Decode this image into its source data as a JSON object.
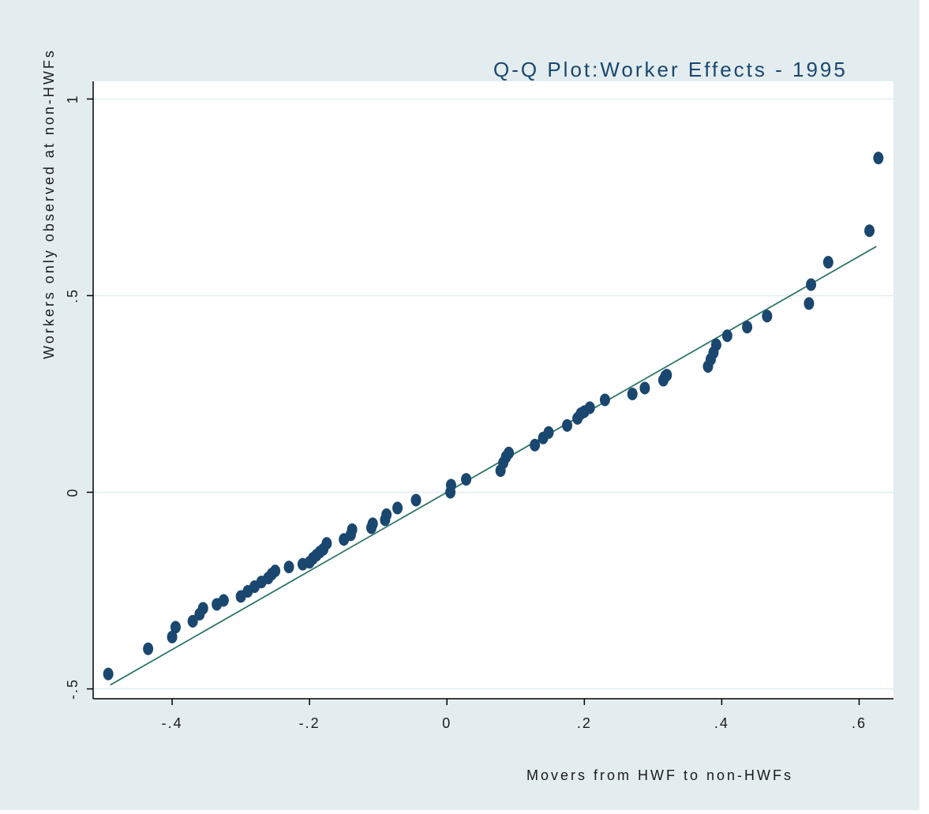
{
  "colors": {
    "outer_background": "#E3EDEF",
    "plot_background": "#FFFFFF",
    "gridline": "#E3EDEF",
    "point": "#1A476F",
    "reference_line": "#2E7667",
    "text": "#1A1A1A",
    "title": "#1A476F"
  },
  "chart_data": {
    "type": "scatter",
    "title": "Q-Q Plot:Worker Effects - 1995",
    "xlabel": "Movers from HWF to non-HWFs",
    "ylabel": "Workers only observed at non-HWFs",
    "x_ticks": [
      -0.4,
      -0.2,
      0,
      0.2,
      0.4,
      0.6
    ],
    "x_tick_labels": [
      "-.4",
      "-.2",
      "0",
      ".2",
      ".4",
      ".6"
    ],
    "y_ticks": [
      -0.5,
      0,
      0.5,
      1
    ],
    "y_tick_labels": [
      "-.5",
      "0",
      ".5",
      "1"
    ],
    "xlim": [
      -0.515,
      0.65
    ],
    "ylim": [
      -0.525,
      1.045
    ],
    "grid": "horizontal",
    "reference_line": {
      "x": [
        -0.49,
        0.625
      ],
      "y": [
        -0.49,
        0.625
      ]
    },
    "series": [
      {
        "points": [
          [
            -0.493,
            -0.462
          ],
          [
            -0.435,
            -0.398
          ],
          [
            -0.4,
            -0.368
          ],
          [
            -0.395,
            -0.343
          ],
          [
            -0.37,
            -0.328
          ],
          [
            -0.36,
            -0.31
          ],
          [
            -0.355,
            -0.295
          ],
          [
            -0.335,
            -0.285
          ],
          [
            -0.325,
            -0.275
          ],
          [
            -0.3,
            -0.265
          ],
          [
            -0.29,
            -0.252
          ],
          [
            -0.28,
            -0.24
          ],
          [
            -0.27,
            -0.228
          ],
          [
            -0.26,
            -0.218
          ],
          [
            -0.255,
            -0.208
          ],
          [
            -0.25,
            -0.2
          ],
          [
            -0.23,
            -0.19
          ],
          [
            -0.21,
            -0.183
          ],
          [
            -0.2,
            -0.178
          ],
          [
            -0.195,
            -0.168
          ],
          [
            -0.19,
            -0.16
          ],
          [
            -0.185,
            -0.152
          ],
          [
            -0.18,
            -0.145
          ],
          [
            -0.175,
            -0.13
          ],
          [
            -0.15,
            -0.12
          ],
          [
            -0.14,
            -0.108
          ],
          [
            -0.138,
            -0.095
          ],
          [
            -0.11,
            -0.09
          ],
          [
            -0.108,
            -0.08
          ],
          [
            -0.09,
            -0.07
          ],
          [
            -0.088,
            -0.057
          ],
          [
            -0.072,
            -0.04
          ],
          [
            -0.045,
            -0.02
          ],
          [
            0.005,
            0
          ],
          [
            0.006,
            0.018
          ],
          [
            0.028,
            0.033
          ],
          [
            0.078,
            0.055
          ],
          [
            0.082,
            0.075
          ],
          [
            0.086,
            0.09
          ],
          [
            0.09,
            0.1
          ],
          [
            0.128,
            0.12
          ],
          [
            0.14,
            0.138
          ],
          [
            0.148,
            0.152
          ],
          [
            0.175,
            0.17
          ],
          [
            0.19,
            0.188
          ],
          [
            0.195,
            0.2
          ],
          [
            0.2,
            0.205
          ],
          [
            0.208,
            0.215
          ],
          [
            0.23,
            0.235
          ],
          [
            0.27,
            0.25
          ],
          [
            0.288,
            0.265
          ],
          [
            0.315,
            0.285
          ],
          [
            0.318,
            0.295
          ],
          [
            0.32,
            0.298
          ],
          [
            0.38,
            0.32
          ],
          [
            0.384,
            0.338
          ],
          [
            0.388,
            0.355
          ],
          [
            0.392,
            0.375
          ],
          [
            0.408,
            0.398
          ],
          [
            0.437,
            0.42
          ],
          [
            0.466,
            0.448
          ],
          [
            0.527,
            0.48
          ],
          [
            0.53,
            0.528
          ],
          [
            0.555,
            0.585
          ],
          [
            0.615,
            0.665
          ],
          [
            0.628,
            0.85
          ]
        ]
      }
    ]
  }
}
